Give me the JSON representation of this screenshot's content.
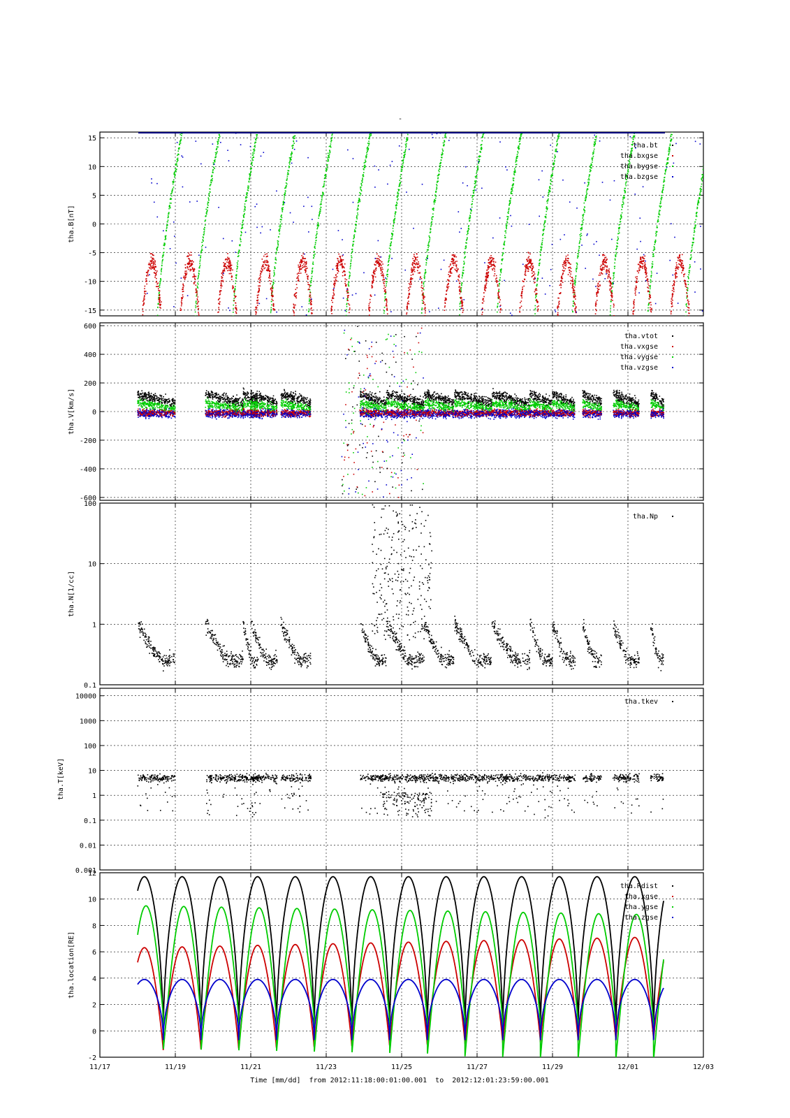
{
  "figure": {
    "top_mark": "-",
    "xlabel": "Time [mm/dd]  from 2012:11:18:00:01:00.001  to  2012:12:01:23:59:00.001",
    "x_ticks": [
      "11/17",
      "11/19",
      "11/21",
      "11/23",
      "11/25",
      "11/27",
      "11/29",
      "12/01",
      "12/03"
    ],
    "x_range_days": [
      0,
      16
    ],
    "colors": {
      "black": "#000000",
      "red": "#cc0000",
      "green": "#00cc00",
      "blue": "#0000cc",
      "grid": "#000000"
    }
  },
  "chart_data": [
    {
      "type": "scatter",
      "ylabel": "tha.B[nT]",
      "scale": "linear",
      "ylim": [
        -16,
        16
      ],
      "y_ticks": [
        "-15",
        "-10",
        "-5",
        "0",
        "5",
        "10",
        "15"
      ],
      "legend_position": "top-right",
      "series": [
        {
          "name": "tha.bt",
          "color": "#000000"
        },
        {
          "name": "tha.bxgse",
          "color": "#cc0000"
        },
        {
          "name": "tha.bygse",
          "color": "#00cc00"
        },
        {
          "name": "tha.bzgse",
          "color": "#0000cc"
        }
      ]
    },
    {
      "type": "scatter",
      "ylabel": "tha.V[km/s]",
      "scale": "linear",
      "ylim": [
        -620,
        620
      ],
      "y_ticks": [
        "-600",
        "-400",
        "-200",
        "0",
        "200",
        "400",
        "600"
      ],
      "legend_position": "top-right",
      "series": [
        {
          "name": "tha.vtot",
          "color": "#000000"
        },
        {
          "name": "tha.vxgse",
          "color": "#cc0000"
        },
        {
          "name": "tha.vygse",
          "color": "#00cc00"
        },
        {
          "name": "tha.vzgse",
          "color": "#0000cc"
        }
      ]
    },
    {
      "type": "scatter",
      "ylabel": "tha.N[1/cc]",
      "scale": "log",
      "ylim": [
        0.1,
        100
      ],
      "y_ticks": [
        "0.1",
        "1",
        "10",
        "100"
      ],
      "legend_position": "top-right",
      "series": [
        {
          "name": "tha.Np",
          "color": "#000000"
        }
      ]
    },
    {
      "type": "scatter",
      "ylabel": "tha.T[keV]",
      "scale": "log",
      "ylim": [
        0.001,
        20000
      ],
      "y_ticks": [
        "0.001",
        "0.01",
        "0.1",
        "1",
        "10",
        "100",
        "1000",
        "10000"
      ],
      "legend_position": "top-right",
      "series": [
        {
          "name": "tha.tkev",
          "color": "#000000"
        }
      ]
    },
    {
      "type": "line",
      "ylabel": "tha.location[RE]",
      "scale": "linear",
      "ylim": [
        -2,
        12
      ],
      "y_ticks": [
        "-2",
        "0",
        "2",
        "4",
        "6",
        "8",
        "10",
        "12"
      ],
      "legend_position": "top-right",
      "series": [
        {
          "name": "tha.Rdist",
          "color": "#000000"
        },
        {
          "name": "tha.xgse",
          "color": "#cc0000"
        },
        {
          "name": "tha.ygse",
          "color": "#00cc00"
        },
        {
          "name": "tha.zgse",
          "color": "#0000cc"
        }
      ]
    }
  ]
}
